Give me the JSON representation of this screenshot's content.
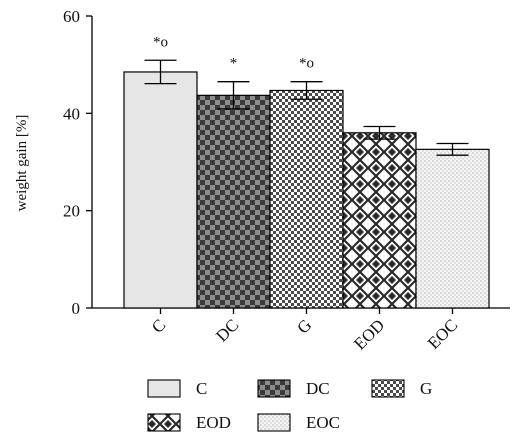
{
  "chart_data": {
    "type": "bar",
    "categories": [
      "C",
      "DC",
      "G",
      "EOD",
      "EOC"
    ],
    "values": [
      48.5,
      43.7,
      44.7,
      36.0,
      32.6
    ],
    "errors": [
      2.4,
      2.8,
      1.8,
      1.3,
      1.2
    ],
    "significance": [
      "*o",
      "*",
      "*o",
      "",
      ""
    ],
    "ylabel": "weight gain [%]",
    "xlabel": "",
    "ylim": [
      0,
      60
    ],
    "yticks": [
      0,
      20,
      40,
      60
    ],
    "legend": {
      "placement": "bottom",
      "entries": [
        "C",
        "DC",
        "G",
        "EOD",
        "EOC"
      ]
    },
    "patterns": [
      "solid-light-gray",
      "checkerboard-dark",
      "dotted-crosshatch",
      "diamond-lattice",
      "fine-stipple"
    ],
    "colors": {
      "C": "#e6e6e6",
      "DC": "#6e6e6e",
      "G": "#5a5a5a",
      "EOD": "#3c3c3c",
      "EOC": "#f2f2f2"
    },
    "grid": false
  }
}
